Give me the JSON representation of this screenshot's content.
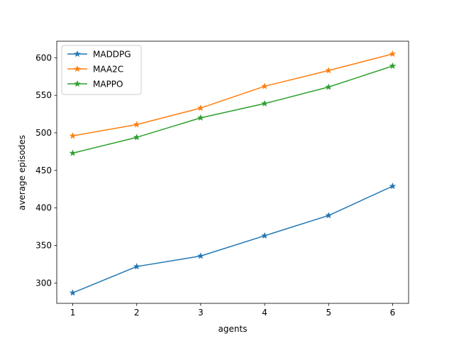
{
  "chart_data": {
    "type": "line",
    "title": "",
    "xlabel": "agents",
    "ylabel": "average episodes",
    "x": [
      1,
      2,
      3,
      4,
      5,
      6
    ],
    "xlim": [
      0.75,
      6.25
    ],
    "ylim": [
      273,
      622
    ],
    "xticks": [
      1,
      2,
      3,
      4,
      5,
      6
    ],
    "yticks": [
      300,
      350,
      400,
      450,
      500,
      550,
      600
    ],
    "grid": false,
    "legend_position": "top-left",
    "marker": "star",
    "series": [
      {
        "name": "MADDPG",
        "color": "#1f77b4",
        "values": [
          287,
          322,
          336,
          363,
          390,
          429
        ]
      },
      {
        "name": "MAA2C",
        "color": "#ff7f0e",
        "values": [
          496,
          511,
          533,
          562,
          583,
          605
        ]
      },
      {
        "name": "MAPPO",
        "color": "#2ca02c",
        "values": [
          473,
          494,
          520,
          539,
          561,
          589
        ]
      }
    ]
  }
}
